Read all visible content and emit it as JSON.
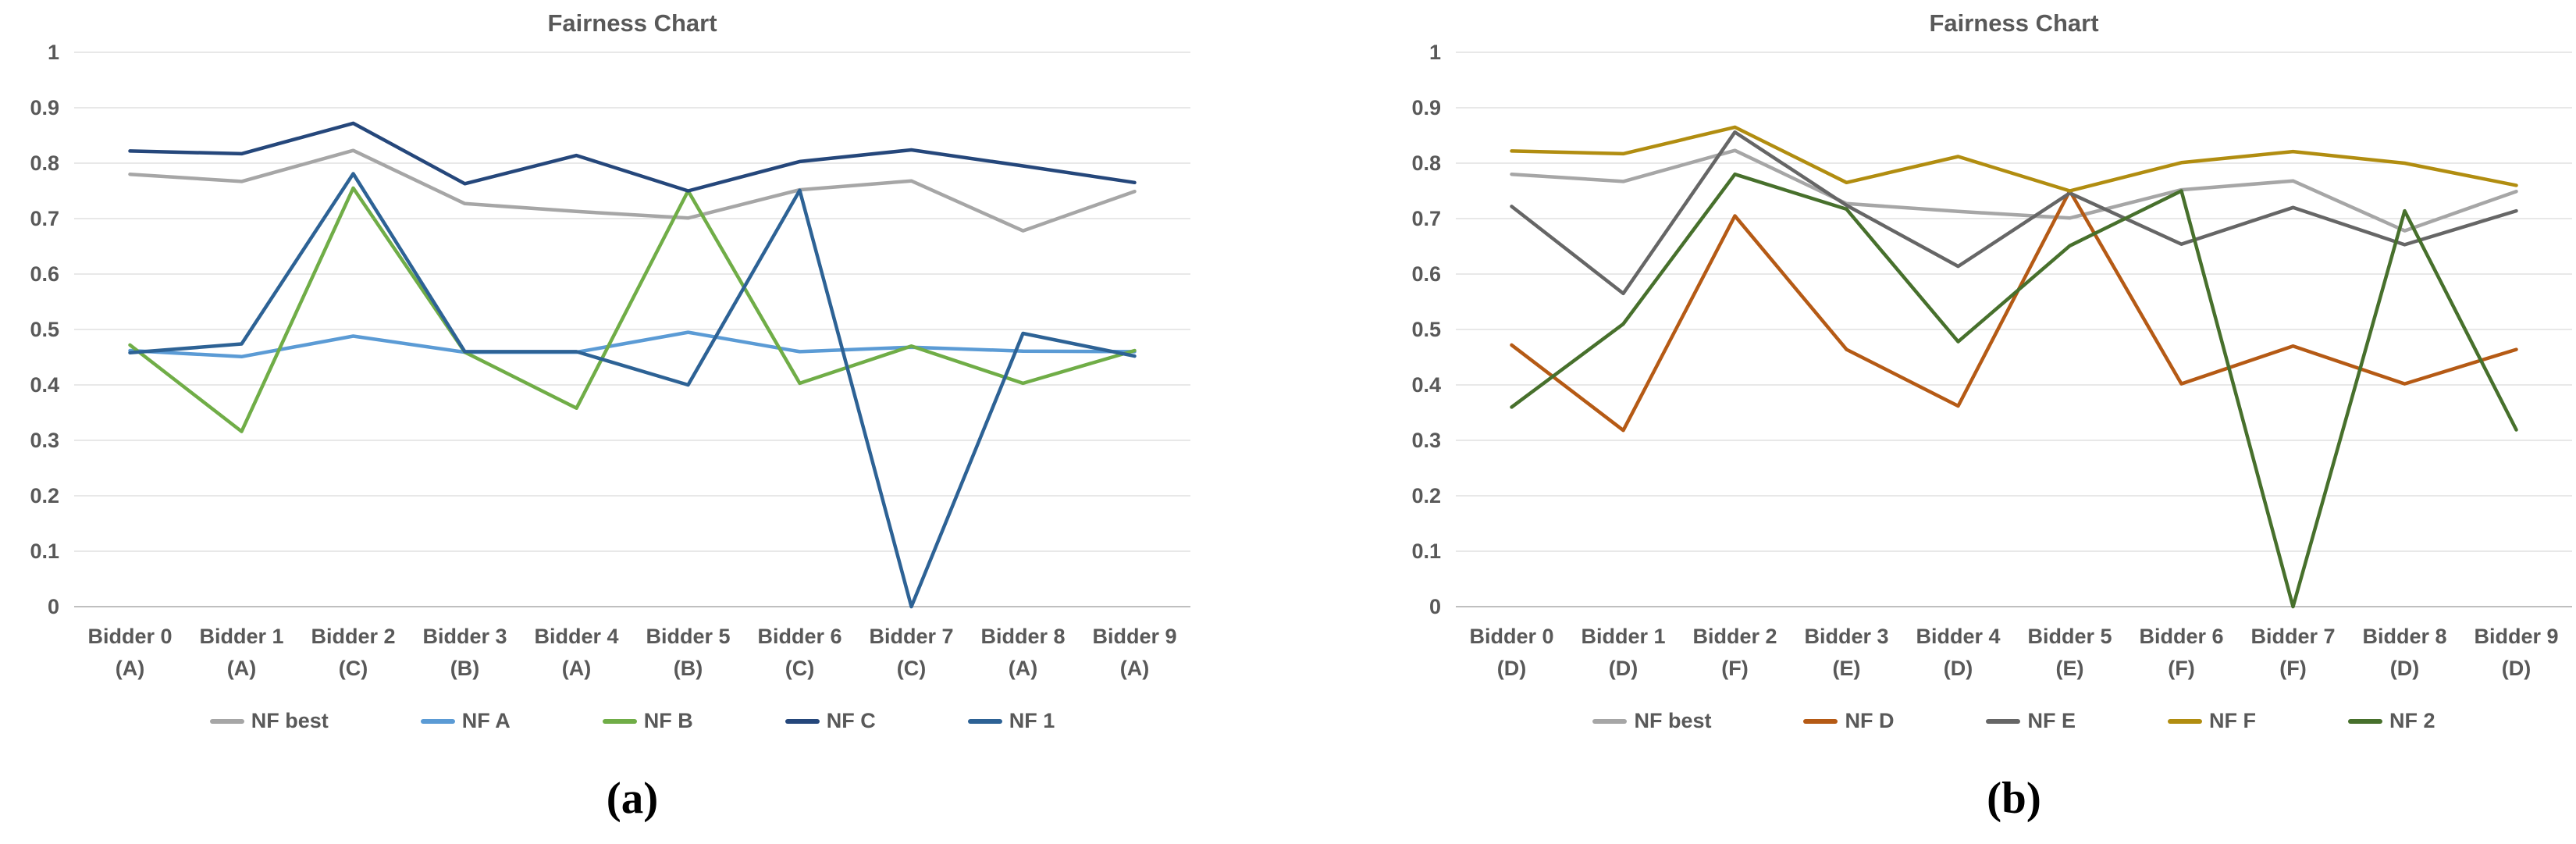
{
  "colors": {
    "text": "#595959",
    "grid": "#d9d9d9",
    "axis_line": "#bfbfbf",
    "caption": "#000000",
    "background": "#ffffff"
  },
  "chart_data": [
    {
      "type": "line",
      "title": "Fairness Chart",
      "caption": "(a)",
      "xlabel": "",
      "ylabel": "",
      "ylim": [
        0,
        1
      ],
      "grid": true,
      "legend_position": "bottom",
      "y_ticks": [
        "1",
        "0.9",
        "0.8",
        "0.7",
        "0.6",
        "0.5",
        "0.4",
        "0.3",
        "0.2",
        "0.1",
        "0"
      ],
      "categories": [
        "Bidder 0",
        "Bidder 1",
        "Bidder 2",
        "Bidder 3",
        "Bidder 4",
        "Bidder 5",
        "Bidder 6",
        "Bidder 7",
        "Bidder 8",
        "Bidder 9"
      ],
      "category_groups": [
        "(A)",
        "(A)",
        "(C)",
        "(B)",
        "(A)",
        "(B)",
        "(C)",
        "(C)",
        "(A)",
        "(A)"
      ],
      "series": [
        {
          "name": "NF best",
          "color": "#a6a6a6",
          "values": [
            0.78,
            0.767,
            0.823,
            0.727,
            0.713,
            0.701,
            0.752,
            0.768,
            0.678,
            0.749
          ]
        },
        {
          "name": "NF A",
          "color": "#5b9bd5",
          "values": [
            0.462,
            0.451,
            0.488,
            0.459,
            0.459,
            0.495,
            0.46,
            0.468,
            0.461,
            0.46
          ]
        },
        {
          "name": "NF B",
          "color": "#70ad47",
          "values": [
            0.472,
            0.316,
            0.755,
            0.459,
            0.358,
            0.75,
            0.403,
            0.47,
            0.403,
            0.462
          ]
        },
        {
          "name": "NF C",
          "color": "#25477b",
          "values": [
            0.822,
            0.817,
            0.872,
            0.763,
            0.814,
            0.75,
            0.803,
            0.824,
            0.795,
            0.765
          ]
        },
        {
          "name": "NF 1",
          "color": "#2d6295",
          "values": [
            0.458,
            0.474,
            0.781,
            0.46,
            0.46,
            0.4,
            0.751,
            0.0,
            0.493,
            0.452
          ]
        }
      ]
    },
    {
      "type": "line",
      "title": "Fairness Chart",
      "caption": "(b)",
      "xlabel": "",
      "ylabel": "",
      "ylim": [
        0,
        1
      ],
      "grid": true,
      "legend_position": "bottom",
      "y_ticks": [
        "1",
        "0.9",
        "0.8",
        "0.7",
        "0.6",
        "0.5",
        "0.4",
        "0.3",
        "0.2",
        "0.1",
        "0"
      ],
      "categories": [
        "Bidder 0",
        "Bidder 1",
        "Bidder 2",
        "Bidder 3",
        "Bidder 4",
        "Bidder 5",
        "Bidder 6",
        "Bidder 7",
        "Bidder 8",
        "Bidder 9"
      ],
      "category_groups": [
        "(D)",
        "(D)",
        "(F)",
        "(E)",
        "(D)",
        "(E)",
        "(F)",
        "(F)",
        "(D)",
        "(D)"
      ],
      "series": [
        {
          "name": "NF best",
          "color": "#a6a6a6",
          "values": [
            0.78,
            0.767,
            0.823,
            0.727,
            0.713,
            0.701,
            0.752,
            0.768,
            0.678,
            0.749
          ]
        },
        {
          "name": "NF D",
          "color": "#b55a15",
          "values": [
            0.472,
            0.318,
            0.705,
            0.464,
            0.362,
            0.75,
            0.402,
            0.47,
            0.402,
            0.464
          ]
        },
        {
          "name": "NF E",
          "color": "#666666",
          "values": [
            0.722,
            0.565,
            0.856,
            0.724,
            0.614,
            0.746,
            0.654,
            0.72,
            0.653,
            0.714
          ]
        },
        {
          "name": "NF F",
          "color": "#b18d10",
          "values": [
            0.822,
            0.817,
            0.865,
            0.765,
            0.812,
            0.75,
            0.801,
            0.821,
            0.8,
            0.76
          ]
        },
        {
          "name": "NF 2",
          "color": "#47702c",
          "values": [
            0.36,
            0.51,
            0.78,
            0.717,
            0.478,
            0.651,
            0.75,
            0.0,
            0.714,
            0.319
          ]
        }
      ]
    }
  ]
}
